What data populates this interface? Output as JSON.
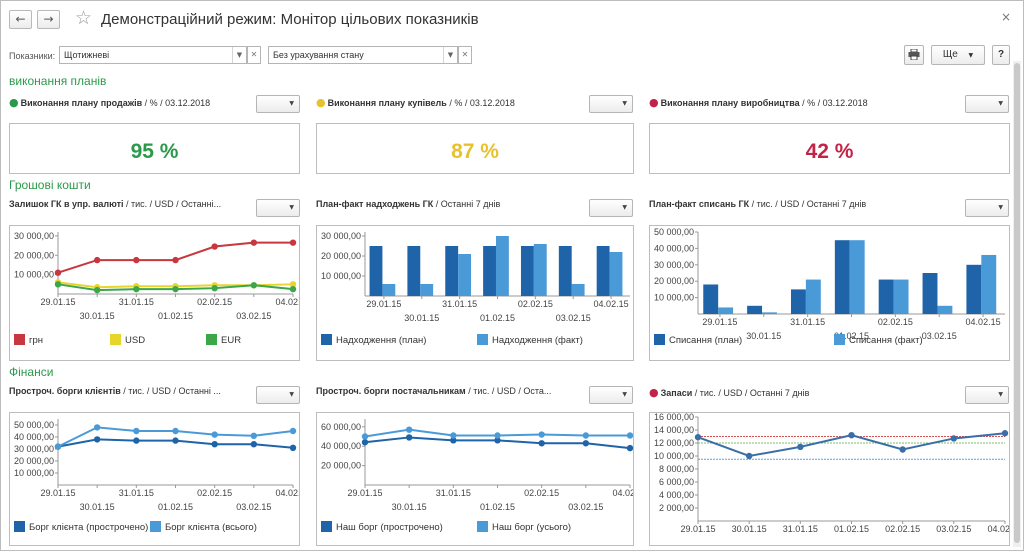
{
  "window": {
    "title": "Демонстраційний режим: Монітор цільових показників",
    "back_glyph": "←",
    "forward_glyph": "→",
    "favorite_glyph": "☆",
    "close_glyph": "×"
  },
  "filters": {
    "label": "Показники:",
    "period_value": "Щотижневі",
    "state_value": "Без урахування стану"
  },
  "toolbar": {
    "more_label": "Ще",
    "help_label": "?"
  },
  "colors": {
    "green": "#2a9a4a",
    "yellow": "#e8c22c",
    "red": "#c42348",
    "dark_blue": "#1f64a8",
    "light_blue": "#4a9ad8"
  },
  "sections": {
    "plans": "виконання планів",
    "cash": "Грошові кошти",
    "finance": "Фінанси"
  },
  "widgets": {
    "sales": {
      "title": "Виконання плану продажів",
      "meta": " / % / 03.12.2018",
      "value": "95 %"
    },
    "purchases": {
      "title": "Виконання плану купівель",
      "meta": " / % / 03.12.2018",
      "value": "87 %"
    },
    "production": {
      "title": "Виконання плану виробництва",
      "meta": " / % / 03.12.2018",
      "value": "42 %"
    },
    "cash_balance": {
      "title": "Залишок ГК в упр. валюті",
      "meta": " / тис. / USD / Останні..."
    },
    "receipts": {
      "title": "План-факт надходжень ГК",
      "meta": " / Останні 7 днів"
    },
    "writeoffs": {
      "title": "План-факт списань ГК",
      "meta": " / тис. / USD / Останні 7 днів"
    },
    "client_debts": {
      "title": "Простроч. борги клієнтів",
      "meta": " / тис. / USD / Останні ..."
    },
    "supplier_debts": {
      "title": "Простроч. борги постачальникам",
      "meta": " / тис. / USD / Оста..."
    },
    "stock": {
      "title": "Запаси",
      "meta": " / тис. / USD / Останні 7 днів"
    }
  },
  "chart_data": [
    {
      "id": "cash_balance",
      "type": "line",
      "x": [
        "29.01.15",
        "30.01.15",
        "31.01.15",
        "01.02.15",
        "02.02.15",
        "03.02.15",
        "04.02.15"
      ],
      "y_ticks": [
        "10 000,00",
        "20 000,00",
        "30 000,00"
      ],
      "ylim": [
        0,
        32000
      ],
      "series": [
        {
          "name": "грн",
          "color": "#c8373e",
          "values": [
            11000,
            17500,
            17500,
            17500,
            24500,
            26500,
            26500
          ]
        },
        {
          "name": "USD",
          "color": "#e8d52c",
          "values": [
            6000,
            3500,
            4000,
            4000,
            4500,
            4500,
            5000
          ]
        },
        {
          "name": "EUR",
          "color": "#3ca64b",
          "values": [
            5000,
            2000,
            2500,
            2500,
            3000,
            4500,
            2500
          ]
        }
      ]
    },
    {
      "id": "receipts",
      "type": "bar",
      "categories": [
        "29.01.15",
        "30.01.15",
        "31.01.15",
        "01.02.15",
        "02.02.15",
        "03.02.15",
        "04.02.15"
      ],
      "y_ticks": [
        "10 000,00",
        "20 000,00",
        "30 000,00"
      ],
      "ylim": [
        0,
        32000
      ],
      "series": [
        {
          "name": "Надходження (план)",
          "color": "#1f64a8",
          "values": [
            25000,
            25000,
            25000,
            25000,
            25000,
            25000,
            25000
          ]
        },
        {
          "name": "Надходження (факт)",
          "color": "#4a9ad8",
          "values": [
            6000,
            6000,
            21000,
            30000,
            26000,
            6000,
            22000
          ]
        }
      ]
    },
    {
      "id": "writeoffs",
      "type": "bar",
      "categories": [
        "29.01.15",
        "30.01.15",
        "31.01.15",
        "01.02.15",
        "02.02.15",
        "03.02.15",
        "04.02.15"
      ],
      "y_ticks": [
        "10 000,00",
        "20 000,00",
        "30 000,00",
        "40 000,00",
        "50 000,00"
      ],
      "ylim": [
        0,
        50000
      ],
      "series": [
        {
          "name": "Списання (план)",
          "color": "#1f64a8",
          "values": [
            18000,
            5000,
            15000,
            45000,
            21000,
            25000,
            30000
          ]
        },
        {
          "name": "Списання (факт)",
          "color": "#4a9ad8",
          "values": [
            4000,
            1000,
            21000,
            45000,
            21000,
            5000,
            36000
          ]
        }
      ]
    },
    {
      "id": "client_debts",
      "type": "line",
      "x": [
        "29.01.15",
        "30.01.15",
        "31.01.15",
        "01.02.15",
        "02.02.15",
        "03.02.15",
        "04.02.15"
      ],
      "y_ticks": [
        "10 000,00",
        "20 000,00",
        "30 000,00",
        "40 000,00",
        "50 000,00"
      ],
      "ylim": [
        0,
        55000
      ],
      "series": [
        {
          "name": "Борг клієнта (прострочено)",
          "color": "#1f64a8",
          "values": [
            32000,
            38000,
            37000,
            37000,
            34000,
            34000,
            31000
          ]
        },
        {
          "name": "Борг клієнта (всього)",
          "color": "#4a9ad8",
          "values": [
            32000,
            48000,
            45000,
            45000,
            42000,
            41000,
            45000
          ]
        }
      ]
    },
    {
      "id": "supplier_debts",
      "type": "line",
      "x": [
        "29.01.15",
        "30.01.15",
        "31.01.15",
        "01.02.15",
        "02.02.15",
        "03.02.15",
        "04.02.15"
      ],
      "y_ticks": [
        "20 000,00",
        "40 000,00",
        "60 000,00"
      ],
      "ylim": [
        0,
        68000
      ],
      "series": [
        {
          "name": "Наш борг (прострочено)",
          "color": "#1f64a8",
          "values": [
            44000,
            49000,
            46000,
            46000,
            43000,
            43000,
            38000
          ]
        },
        {
          "name": "Наш борг (усього)",
          "color": "#4a9ad8",
          "values": [
            50000,
            57000,
            51000,
            51000,
            52000,
            51000,
            51000
          ]
        }
      ]
    },
    {
      "id": "stock",
      "type": "line",
      "x": [
        "29.01.15",
        "30.01.15",
        "31.01.15",
        "01.02.15",
        "02.02.15",
        "03.02.15",
        "04.02.15"
      ],
      "y_ticks": [
        "2 000,00",
        "4 000,00",
        "6 000,00",
        "8 000,00",
        "10 000,00",
        "12 000,00",
        "14 000,00",
        "16 000,00"
      ],
      "ylim": [
        0,
        16000
      ],
      "series": [
        {
          "name": "",
          "color": "#3a6ea8",
          "values": [
            12900,
            10000,
            11400,
            13200,
            11000,
            12700,
            13500
          ]
        }
      ],
      "reference_lines": [
        {
          "color": "#d65050",
          "value": 13000
        },
        {
          "color": "#7cbf6a",
          "value": 12000
        },
        {
          "color": "#5aa0d8",
          "value": 9500
        }
      ]
    }
  ]
}
